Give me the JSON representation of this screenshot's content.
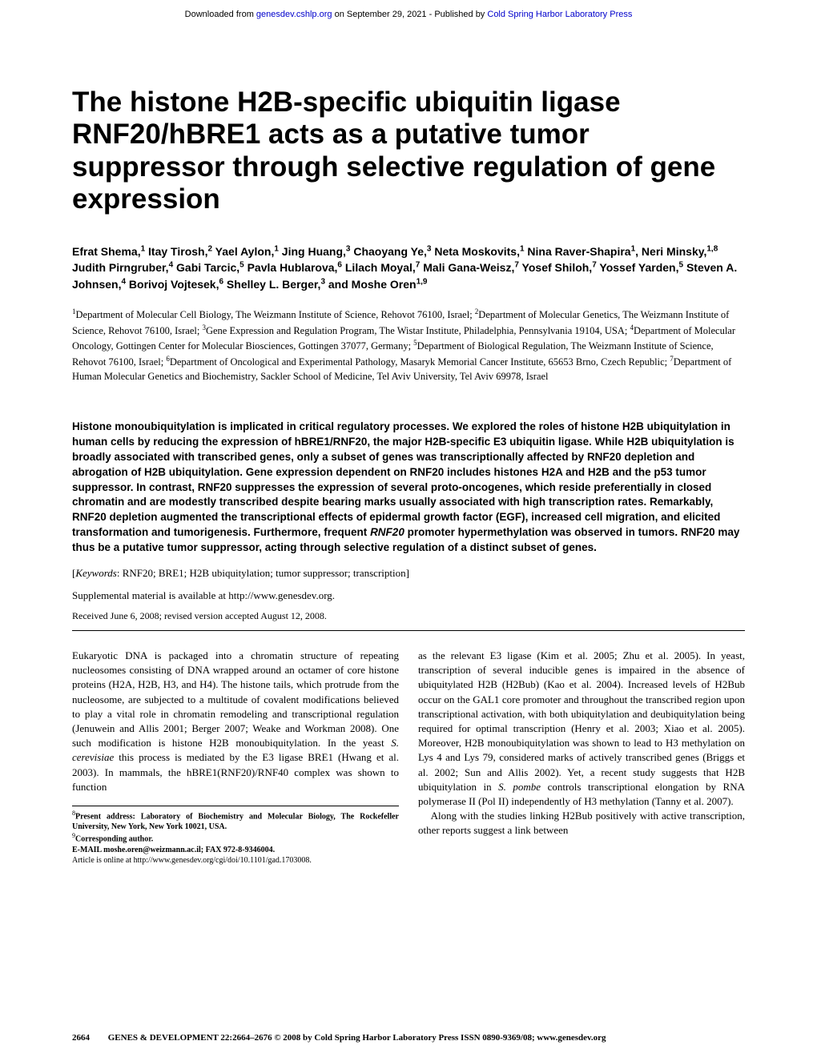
{
  "banner": {
    "prefix": "Downloaded from ",
    "link1": "genesdev.cshlp.org",
    "mid": " on September 29, 2021 - Published by ",
    "link2": "Cold Spring Harbor Laboratory Press"
  },
  "title": "The histone H2B-specific ubiquitin ligase RNF20/hBRE1 acts as a putative tumor suppressor through selective regulation of gene expression",
  "authors_html": "Efrat Shema,<sup>1</sup> Itay Tirosh,<sup>2</sup> Yael Aylon,<sup>1</sup> Jing Huang,<sup>3</sup> Chaoyang Ye,<sup>3</sup> Neta Moskovits,<sup>1</sup> Nina Raver-Shapira<sup>1</sup>, Neri Minsky,<sup>1,8</sup> Judith Pirngruber,<sup>4</sup> Gabi Tarcic,<sup>5</sup> Pavla Hublarova,<sup>6</sup> Lilach Moyal,<sup>7</sup> Mali Gana-Weisz,<sup>7</sup> Yosef Shiloh,<sup>7</sup> Yossef Yarden,<sup>5</sup> Steven A. Johnsen,<sup>4</sup> Borivoj Vojtesek,<sup>6</sup> Shelley L. Berger,<sup>3</sup> and Moshe Oren<sup>1,9</sup>",
  "affiliations_html": "<sup>1</sup>Department of Molecular Cell Biology, The Weizmann Institute of Science, Rehovot 76100, Israel; <sup>2</sup>Department of Molecular Genetics, The Weizmann Institute of Science, Rehovot 76100, Israel; <sup>3</sup>Gene Expression and Regulation Program, The Wistar Institute, Philadelphia, Pennsylvania 19104, USA; <sup>4</sup>Department of Molecular Oncology, Gottingen Center for Molecular Biosciences, Gottingen 37077, Germany; <sup>5</sup>Department of Biological Regulation, The Weizmann Institute of Science, Rehovot 76100, Israel; <sup>6</sup>Department of Oncological and Experimental Pathology, Masaryk Memorial Cancer Institute, 65653 Brno, Czech Republic; <sup>7</sup>Department of Human Molecular Genetics and Biochemistry, Sackler School of Medicine, Tel Aviv University, Tel Aviv 69978, Israel",
  "abstract_html": "Histone monoubiquitylation is implicated in critical regulatory processes. We explored the roles of histone H2B ubiquitylation in human cells by reducing the expression of hBRE1/RNF20, the major H2B-specific E3 ubiquitin ligase. While H2B ubiquitylation is broadly associated with transcribed genes, only a subset of genes was transcriptionally affected by RNF20 depletion and abrogation of H2B ubiquitylation. Gene expression dependent on RNF20 includes histones H2A and H2B and the p53 tumor suppressor. In contrast, RNF20 suppresses the expression of several proto-oncogenes, which reside preferentially in closed chromatin and are modestly transcribed despite bearing marks usually associated with high transcription rates. Remarkably, RNF20 depletion augmented the transcriptional effects of epidermal growth factor (EGF), increased cell migration, and elicited transformation and tumorigenesis. Furthermore, frequent <span class=\"italic\">RNF20</span> promoter hypermethylation was observed in tumors. RNF20 may thus be a putative tumor suppressor, acting through selective regulation of a distinct subset of genes.",
  "keywords_html": "[<span style=\"font-style:italic\">Keywords</span>: RNF20; BRE1; H2B ubiquitylation; tumor suppressor; transcription]",
  "supplemental": "Supplemental material is available at http://www.genesdev.org.",
  "received": "Received June 6, 2008; revised version accepted August 12, 2008.",
  "body": {
    "left_p1_html": "Eukaryotic DNA is packaged into a chromatin structure of repeating nucleosomes consisting of DNA wrapped around an octamer of core histone proteins (H2A, H2B, H3, and H4). The histone tails, which protrude from the nucleosome, are subjected to a multitude of covalent modifications believed to play a vital role in chromatin remodeling and transcriptional regulation (Jenuwein and Allis 2001; Berger 2007; Weake and Workman 2008). One such modification is histone H2B monoubiquitylation. In the yeast <span class=\"italic\">S. cerevisiae</span> this process is mediated by the E3 ligase BRE1 (Hwang et al. 2003). In mammals, the hBRE1(RNF20)/RNF40 complex was shown to function",
    "right_p1_html": "as the relevant E3 ligase (Kim et al. 2005; Zhu et al. 2005). In yeast, transcription of several inducible genes is impaired in the absence of ubiquitylated H2B (H2Bub) (Kao et al. 2004). Increased levels of H2Bub occur on the GAL1 core promoter and throughout the transcribed region upon transcriptional activation, with both ubiquitylation and deubiquitylation being required for optimal transcription (Henry et al. 2003; Xiao et al. 2005). Moreover, H2B monoubiquitylation was shown to lead to H3 methylation on Lys 4 and Lys 79, considered marks of actively transcribed genes (Briggs et al. 2002; Sun and Allis 2002). Yet, a recent study suggests that H2B ubiquitylation in <span class=\"italic\">S. pombe</span> controls transcriptional elongation by RNA polymerase II (Pol II) independently of H3 methylation (Tanny et al. 2007).",
    "right_p2_html": "Along with the studies linking H2Bub positively with active transcription, other reports suggest a link between"
  },
  "footnotes_html": "<sup>8</sup><b>Present address: Laboratory of Biochemistry and Molecular Biology, The Rockefeller University, New York, New York 10021, USA.</b><br><sup>9</sup><b>Corresponding author.</b><br><b>E-MAIL moshe.oren@weizmann.ac.il; FAX 972-8-9346004.</b><br>Article is online at http://www.genesdev.org/cgi/doi/10.1101/gad.1703008.",
  "footer": {
    "pagenum": "2664",
    "text": "GENES & DEVELOPMENT 22:2664–2676 © 2008 by Cold Spring Harbor Laboratory Press ISSN 0890-9369/08; www.genesdev.org"
  }
}
